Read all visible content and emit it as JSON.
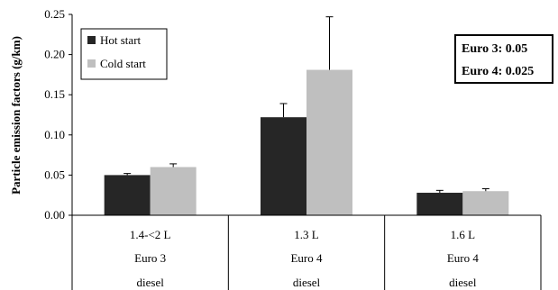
{
  "chart_data": {
    "type": "bar",
    "ylabel": "Particle emission factors (g/km)",
    "ylim": [
      0,
      0.25
    ],
    "yticks": [
      "0.00",
      "0.05",
      "0.10",
      "0.15",
      "0.20",
      "0.25"
    ],
    "categories": [
      {
        "lines": [
          "1.4-<2 L",
          "Euro 3",
          "diesel"
        ]
      },
      {
        "lines": [
          "1.3 L",
          "Euro 4",
          "diesel"
        ]
      },
      {
        "lines": [
          "1.6 L",
          "Euro 4",
          "diesel"
        ]
      }
    ],
    "series": [
      {
        "name": "Hot start",
        "color": "#262626",
        "values": [
          0.05,
          0.122,
          0.028
        ],
        "err_upper": [
          0.052,
          0.139,
          0.031
        ]
      },
      {
        "name": "Cold start",
        "color": "#bfbfbf",
        "values": [
          0.06,
          0.181,
          0.03
        ],
        "err_upper": [
          0.064,
          0.247,
          0.033
        ]
      }
    ],
    "legend_position": "top-left",
    "annotation": [
      "Euro 3: 0.05",
      "Euro 4: 0.025"
    ],
    "grid": false
  }
}
